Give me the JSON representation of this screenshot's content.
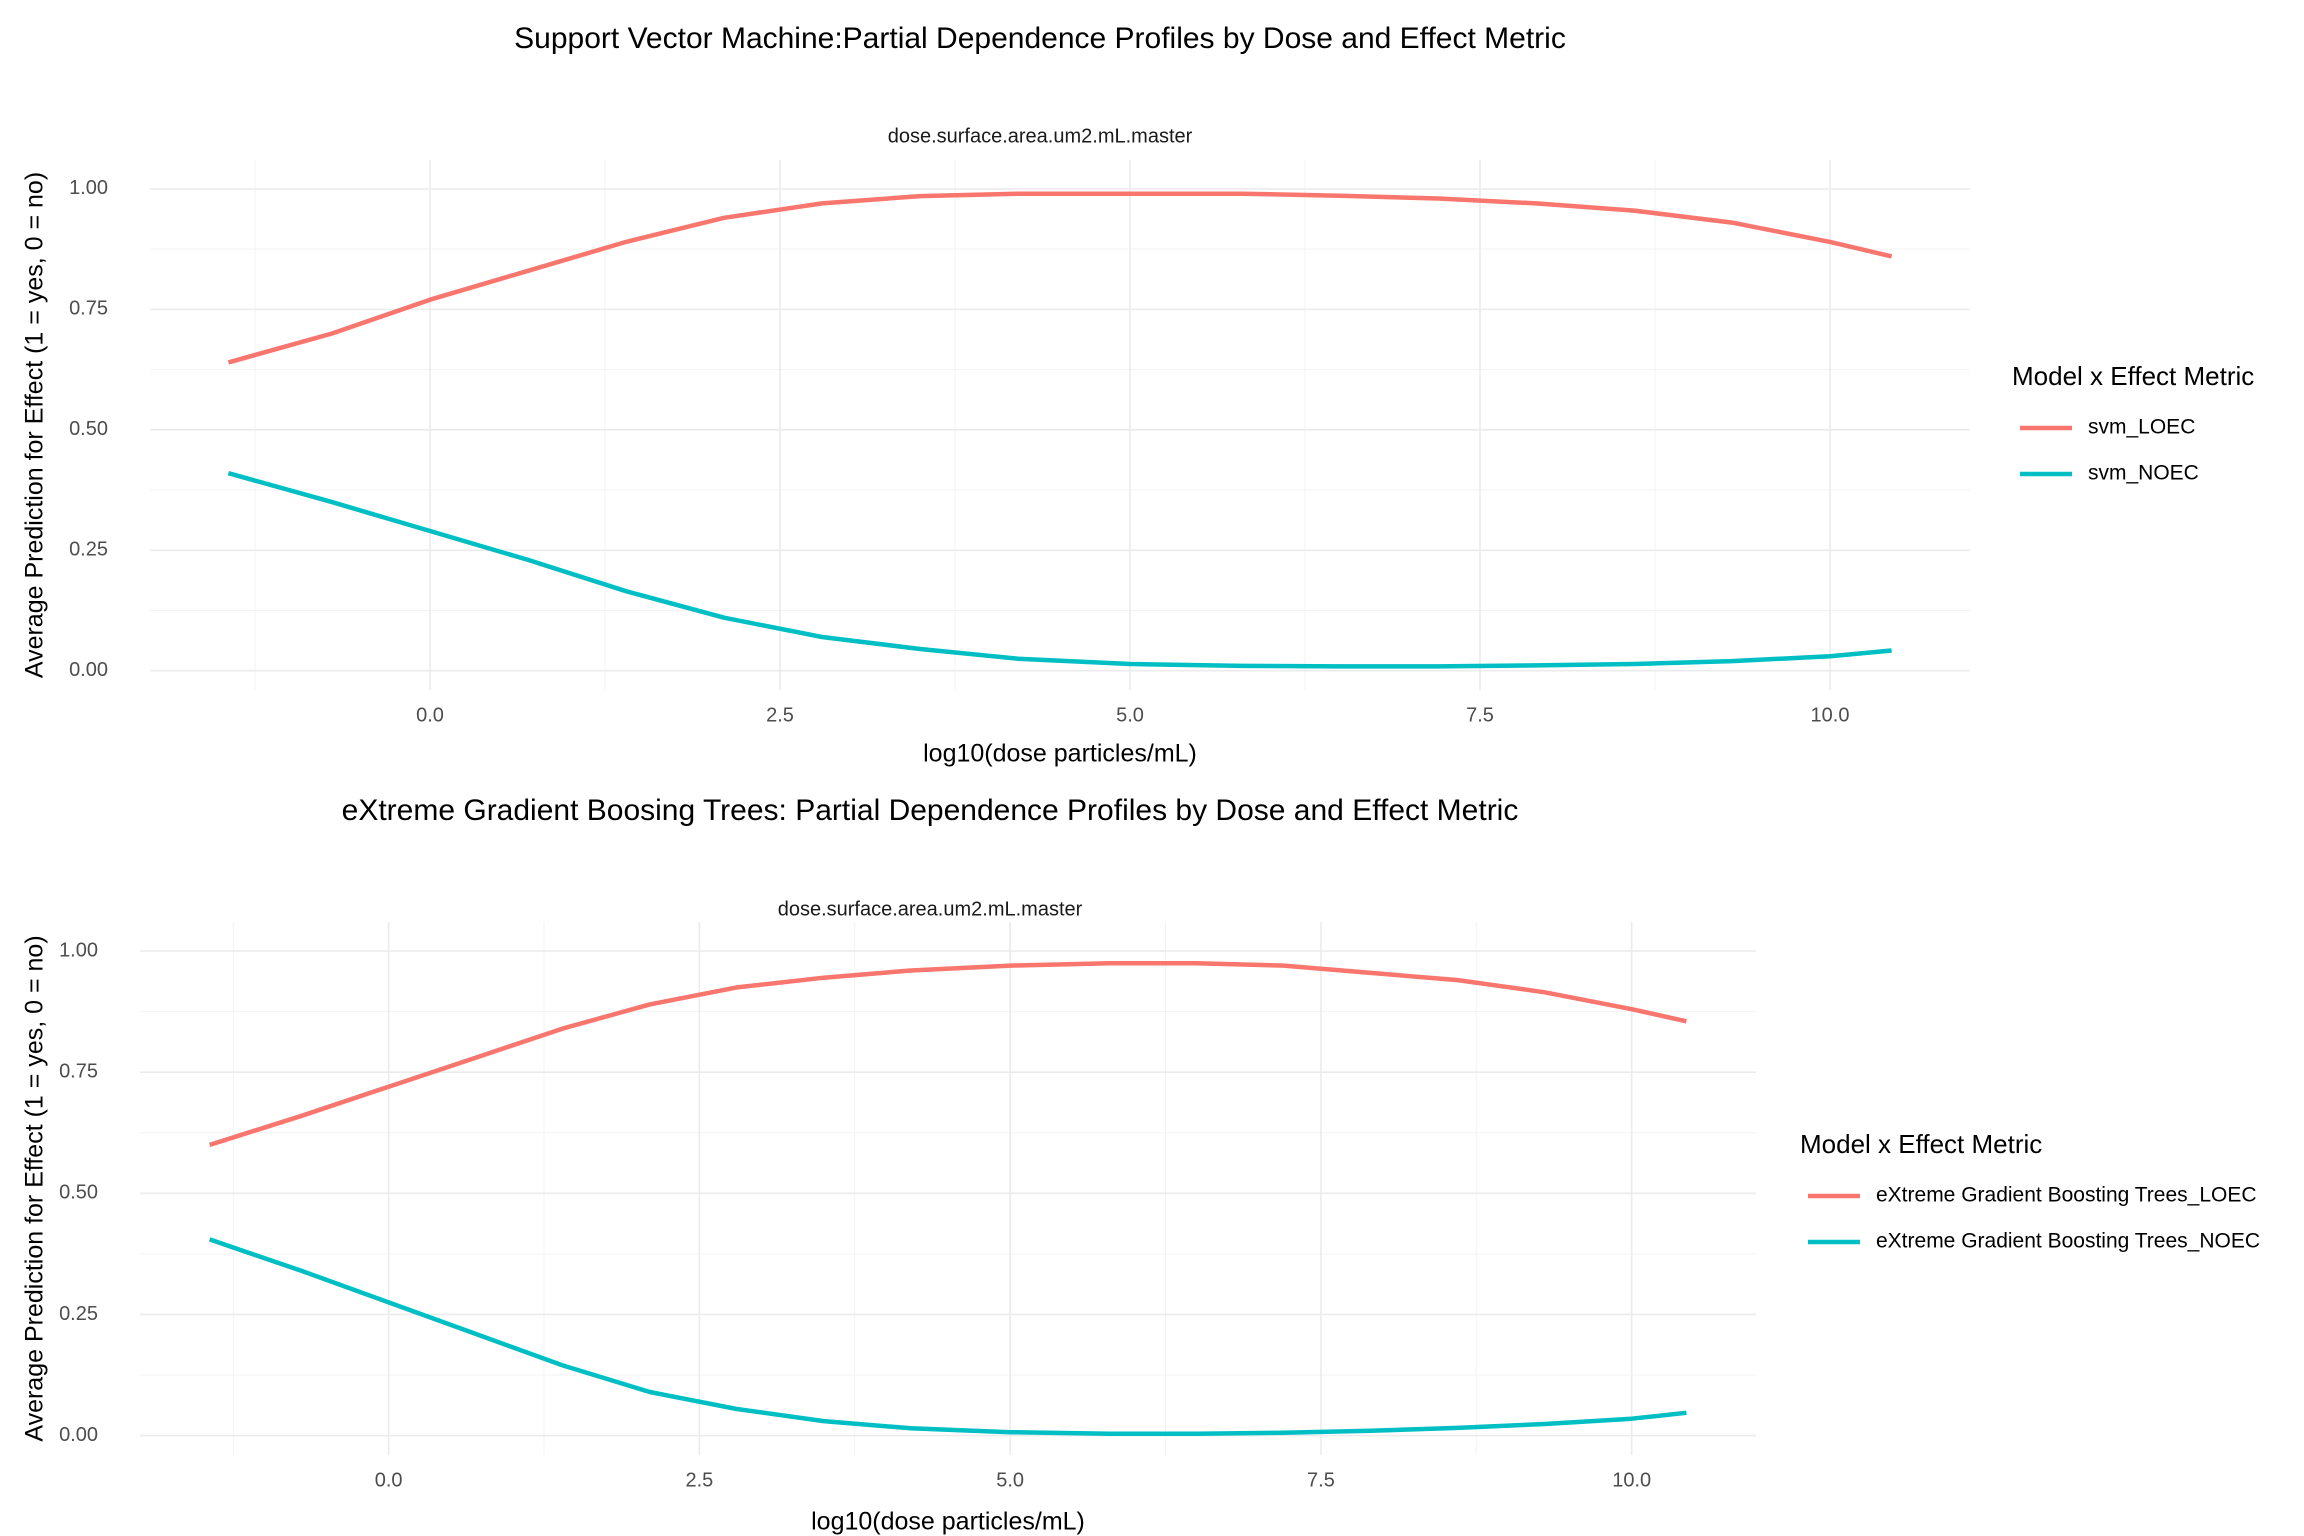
{
  "chart_data": [
    {
      "type": "line",
      "title": "Support Vector Machine:Partial Dependence Profiles by Dose and Effect Metric",
      "facet_label": "dose.surface.area.um2.mL.master",
      "xlabel": "log10(dose particles/mL)",
      "ylabel": "Average Prediction for Effect (1 = yes, 0 = no)",
      "xlim": [
        -2.0,
        11.0
      ],
      "ylim": [
        -0.04,
        1.06
      ],
      "x_ticks": [
        0.0,
        2.5,
        5.0,
        7.5,
        10.0
      ],
      "x_tick_labels": [
        "0.0",
        "2.5",
        "5.0",
        "7.5",
        "10.0"
      ],
      "y_ticks": [
        0.0,
        0.25,
        0.5,
        0.75,
        1.0
      ],
      "y_tick_labels": [
        "0.00",
        "0.25",
        "0.50",
        "0.75",
        "1.00"
      ],
      "grid": true,
      "legend": {
        "title": "Model x Effect Metric",
        "position": "right",
        "entries": [
          "svm_LOEC",
          "svm_NOEC"
        ]
      },
      "series": [
        {
          "name": "svm_LOEC",
          "color": "#F8766D",
          "x": [
            -1.44,
            -0.7,
            0,
            0.7,
            1.4,
            2.1,
            2.8,
            3.5,
            4.2,
            5,
            5.8,
            6.5,
            7.2,
            7.9,
            8.6,
            9.3,
            10,
            10.44
          ],
          "y": [
            0.64,
            0.7,
            0.77,
            0.83,
            0.89,
            0.94,
            0.97,
            0.985,
            0.99,
            0.99,
            0.99,
            0.986,
            0.98,
            0.97,
            0.955,
            0.93,
            0.89,
            0.86
          ]
        },
        {
          "name": "svm_NOEC",
          "color": "#00BFC4",
          "x": [
            -1.44,
            -0.7,
            0,
            0.7,
            1.4,
            2.1,
            2.8,
            3.5,
            4.2,
            5,
            5.8,
            6.5,
            7.2,
            7.9,
            8.6,
            9.3,
            10,
            10.44
          ],
          "y": [
            0.41,
            0.35,
            0.29,
            0.23,
            0.165,
            0.11,
            0.07,
            0.045,
            0.025,
            0.014,
            0.01,
            0.009,
            0.009,
            0.011,
            0.014,
            0.02,
            0.03,
            0.042
          ]
        }
      ]
    },
    {
      "type": "line",
      "title": "eXtreme Gradient Boosing Trees: Partial Dependence Profiles by Dose and Effect Metric",
      "facet_label": "dose.surface.area.um2.mL.master",
      "xlabel": "log10(dose particles/mL)",
      "ylabel": "Average Prediction for Effect (1 = yes, 0 = no)",
      "xlim": [
        -2.0,
        11.0
      ],
      "ylim": [
        -0.04,
        1.06
      ],
      "x_ticks": [
        0.0,
        2.5,
        5.0,
        7.5,
        10.0
      ],
      "x_tick_labels": [
        "0.0",
        "2.5",
        "5.0",
        "7.5",
        "10.0"
      ],
      "y_ticks": [
        0.0,
        0.25,
        0.5,
        0.75,
        1.0
      ],
      "y_tick_labels": [
        "0.00",
        "0.25",
        "0.50",
        "0.75",
        "1.00"
      ],
      "grid": true,
      "legend": {
        "title": "Model x Effect Metric",
        "position": "right",
        "entries": [
          "eXtreme Gradient Boosting Trees_LOEC",
          "eXtreme Gradient Boosting Trees_NOEC"
        ]
      },
      "series": [
        {
          "name": "eXtreme Gradient Boosting Trees_LOEC",
          "color": "#F8766D",
          "x": [
            -1.44,
            -0.7,
            0,
            0.7,
            1.4,
            2.1,
            2.8,
            3.5,
            4.2,
            5,
            5.8,
            6.5,
            7.2,
            7.9,
            8.6,
            9.3,
            10,
            10.44
          ],
          "y": [
            0.6,
            0.66,
            0.72,
            0.78,
            0.84,
            0.89,
            0.925,
            0.945,
            0.96,
            0.97,
            0.975,
            0.975,
            0.97,
            0.955,
            0.94,
            0.915,
            0.88,
            0.855
          ]
        },
        {
          "name": "eXtreme Gradient Boosting Trees_NOEC",
          "color": "#00BFC4",
          "x": [
            -1.44,
            -0.7,
            0,
            0.7,
            1.4,
            2.1,
            2.8,
            3.5,
            4.2,
            5,
            5.8,
            6.5,
            7.2,
            7.9,
            8.6,
            9.3,
            10,
            10.44
          ],
          "y": [
            0.405,
            0.34,
            0.275,
            0.21,
            0.145,
            0.09,
            0.055,
            0.03,
            0.015,
            0.007,
            0.004,
            0.004,
            0.006,
            0.01,
            0.016,
            0.024,
            0.035,
            0.047
          ]
        }
      ]
    }
  ]
}
